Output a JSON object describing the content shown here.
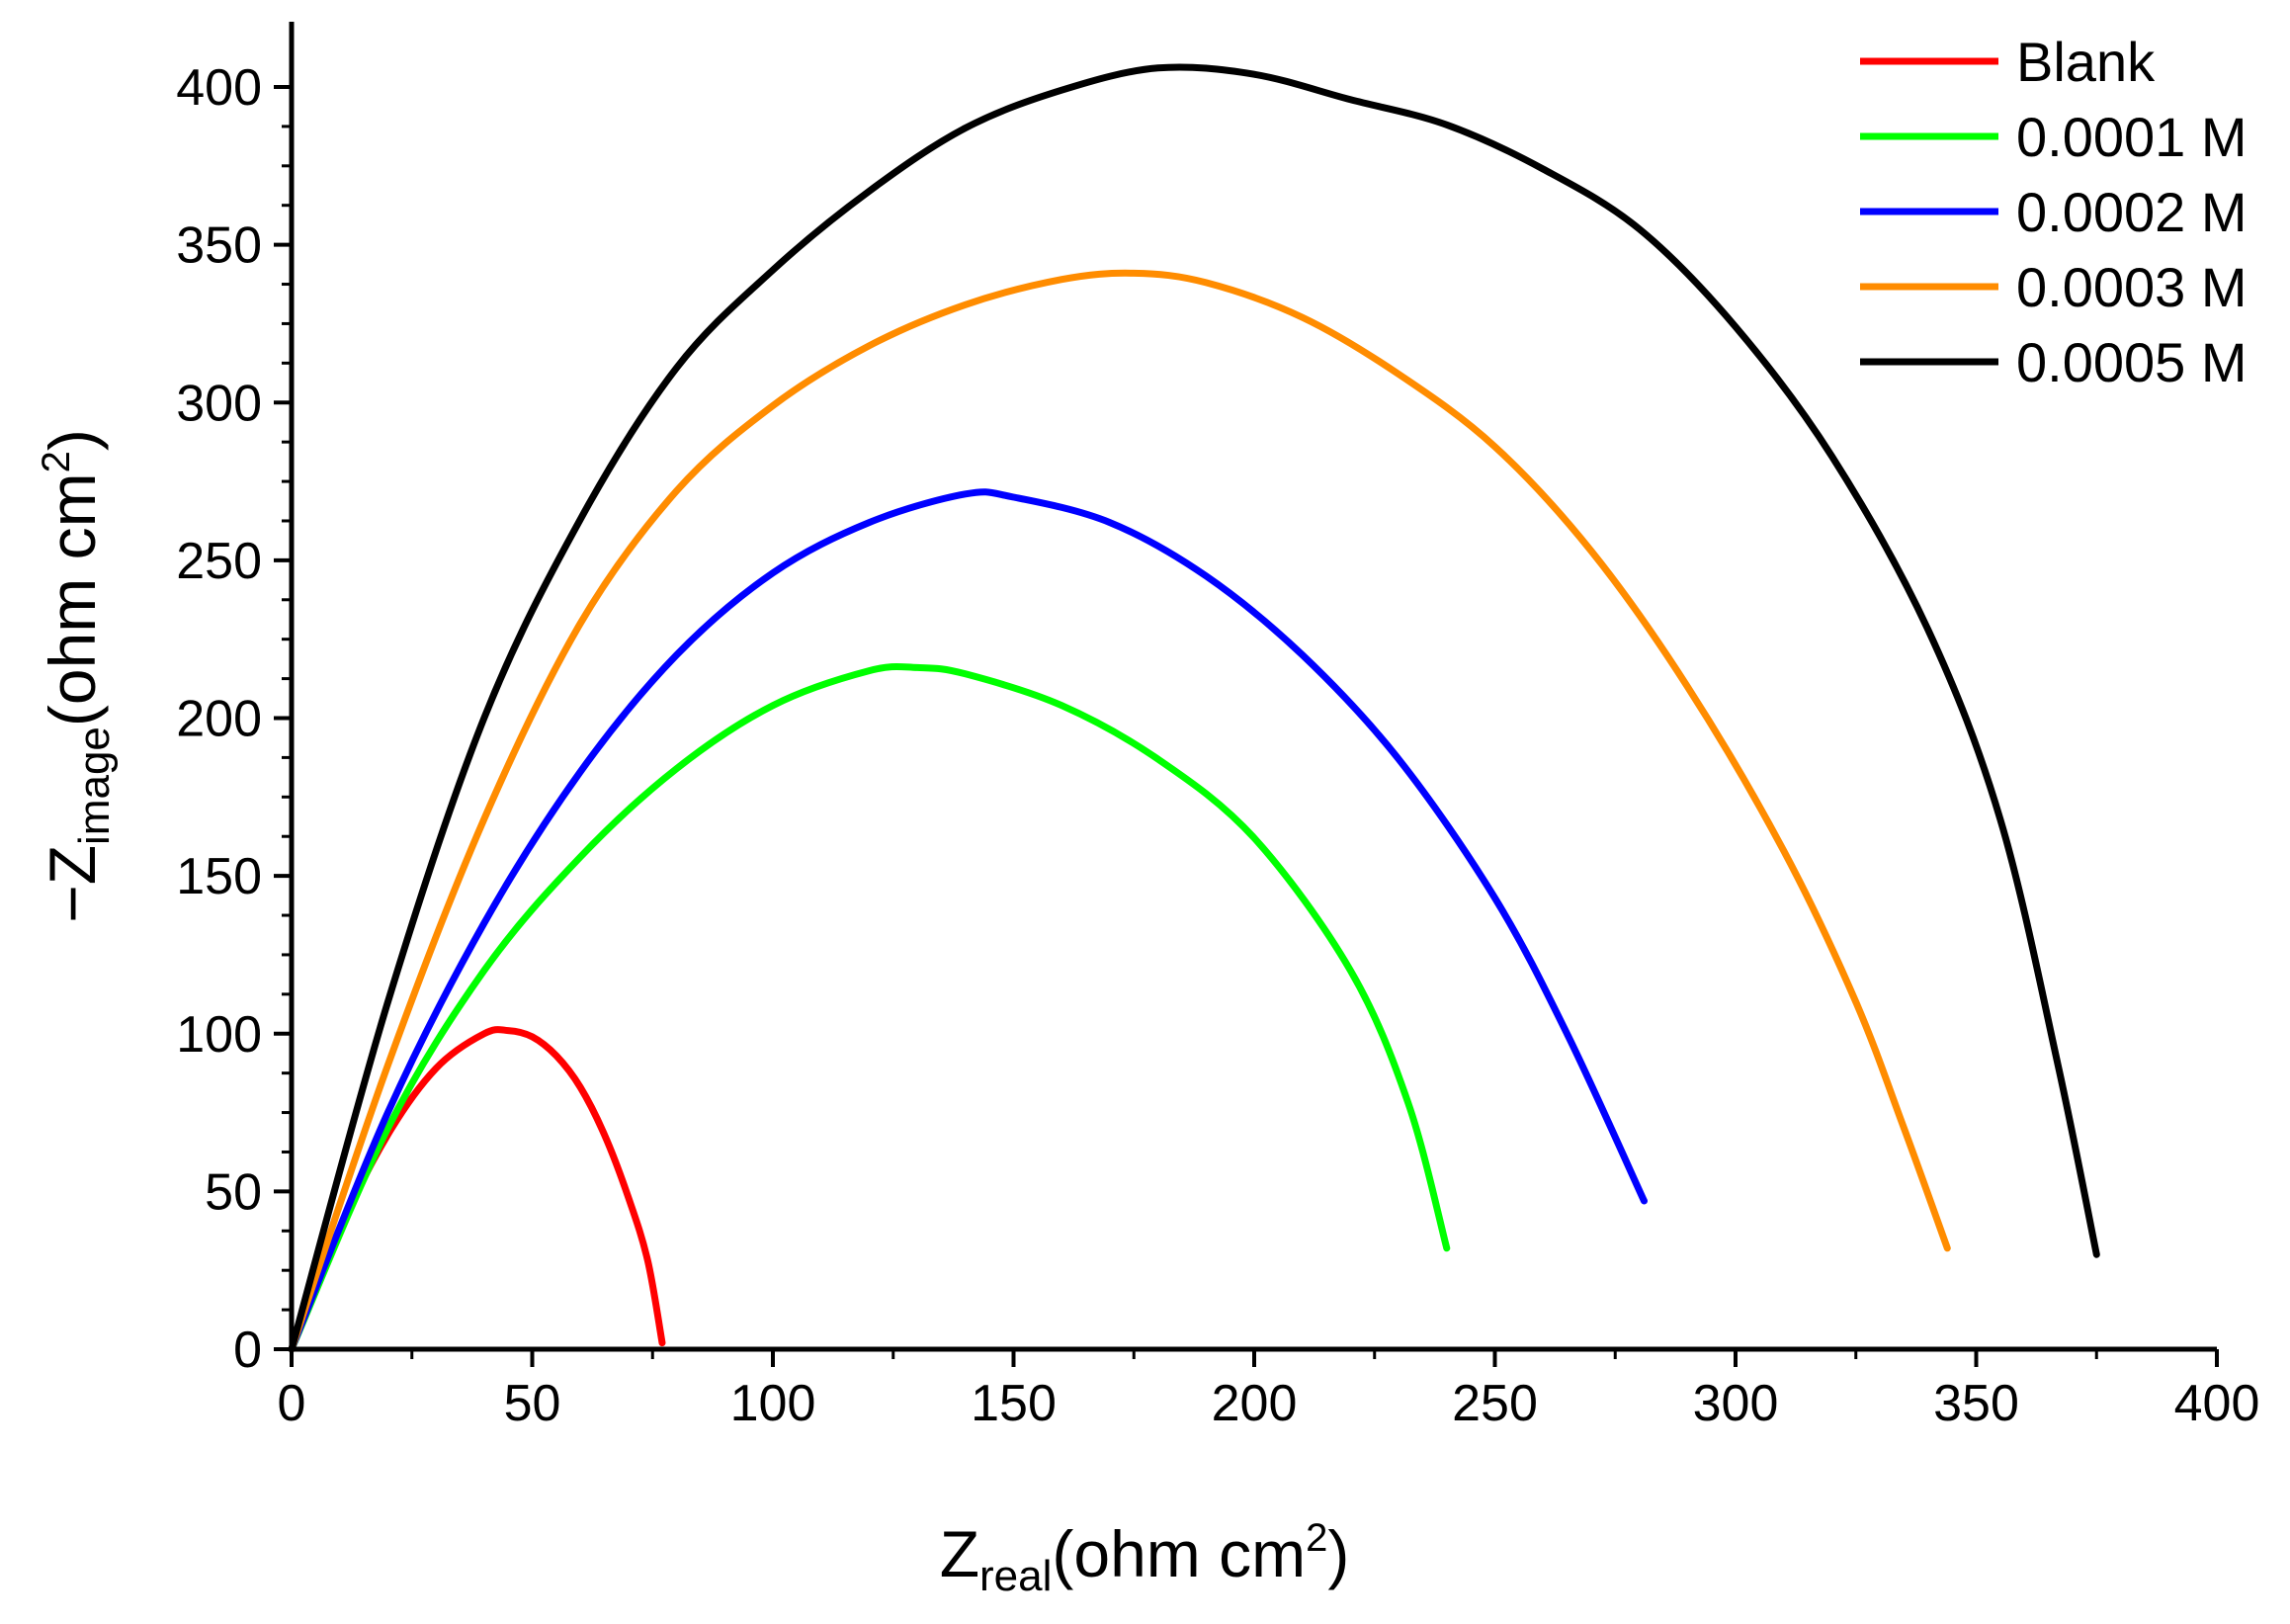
{
  "chart_data": {
    "type": "line",
    "title": "",
    "xlabel": {
      "main": "Z",
      "sub": "real",
      "unit_pre": "(ohm cm",
      "sup": "2",
      "unit_post": ")"
    },
    "ylabel": {
      "main": "−Z",
      "sub": "image",
      "unit_pre": "(ohm cm",
      "sup": "2",
      "unit_post": ")"
    },
    "xlim": [
      0,
      400
    ],
    "ylim": [
      0,
      400
    ],
    "xticks": [
      "0",
      "50",
      "100",
      "150",
      "200",
      "250",
      "300",
      "350",
      "400"
    ],
    "yticks": [
      "0",
      "50",
      "100",
      "150",
      "200",
      "250",
      "300",
      "350",
      "400"
    ],
    "grid": false,
    "legend_position": "top-right",
    "series": [
      {
        "name": "Blank",
        "color": "#ff0000",
        "points": [
          [
            0,
            0
          ],
          [
            10,
            38
          ],
          [
            20,
            68
          ],
          [
            30,
            89
          ],
          [
            40,
            100
          ],
          [
            45,
            101
          ],
          [
            50,
            99
          ],
          [
            55,
            93
          ],
          [
            60,
            83
          ],
          [
            65,
            68
          ],
          [
            70,
            48
          ],
          [
            74,
            28
          ],
          [
            77,
            2
          ]
        ]
      },
      {
        "name": "0.0001 M",
        "color": "#00ff00",
        "points": [
          [
            0,
            0
          ],
          [
            20,
            70
          ],
          [
            40,
            120
          ],
          [
            60,
            156
          ],
          [
            80,
            184
          ],
          [
            100,
            204
          ],
          [
            120,
            215
          ],
          [
            130,
            216
          ],
          [
            140,
            214
          ],
          [
            160,
            204
          ],
          [
            180,
            187
          ],
          [
            200,
            162
          ],
          [
            220,
            120
          ],
          [
            232,
            78
          ],
          [
            240,
            32
          ]
        ]
      },
      {
        "name": "0.0002 M",
        "color": "#0000ff",
        "points": [
          [
            0,
            0
          ],
          [
            20,
            75
          ],
          [
            40,
            135
          ],
          [
            60,
            183
          ],
          [
            80,
            220
          ],
          [
            100,
            246
          ],
          [
            120,
            262
          ],
          [
            140,
            271
          ],
          [
            150,
            270
          ],
          [
            170,
            262
          ],
          [
            190,
            245
          ],
          [
            210,
            220
          ],
          [
            230,
            187
          ],
          [
            250,
            143
          ],
          [
            265,
            100
          ],
          [
            281,
            47
          ]
        ]
      },
      {
        "name": "0.0003 M",
        "color": "#ff8c00",
        "points": [
          [
            0,
            0
          ],
          [
            20,
            90
          ],
          [
            40,
            168
          ],
          [
            60,
            230
          ],
          [
            80,
            272
          ],
          [
            100,
            299
          ],
          [
            120,
            318
          ],
          [
            140,
            331
          ],
          [
            160,
            339
          ],
          [
            175,
            341
          ],
          [
            190,
            338
          ],
          [
            210,
            327
          ],
          [
            230,
            309
          ],
          [
            250,
            286
          ],
          [
            270,
            253
          ],
          [
            290,
            210
          ],
          [
            310,
            158
          ],
          [
            325,
            110
          ],
          [
            335,
            70
          ],
          [
            344,
            32
          ]
        ]
      },
      {
        "name": "0.0005 M",
        "color": "#000000",
        "points": [
          [
            0,
            0
          ],
          [
            20,
            110
          ],
          [
            40,
            200
          ],
          [
            60,
            263
          ],
          [
            80,
            311
          ],
          [
            100,
            342
          ],
          [
            120,
            367
          ],
          [
            140,
            387
          ],
          [
            160,
            399
          ],
          [
            180,
            406
          ],
          [
            200,
            404
          ],
          [
            220,
            396
          ],
          [
            240,
            388
          ],
          [
            260,
            374
          ],
          [
            280,
            355
          ],
          [
            300,
            324
          ],
          [
            320,
            283
          ],
          [
            340,
            228
          ],
          [
            355,
            168
          ],
          [
            367,
            90
          ],
          [
            375,
            30
          ]
        ]
      }
    ]
  }
}
